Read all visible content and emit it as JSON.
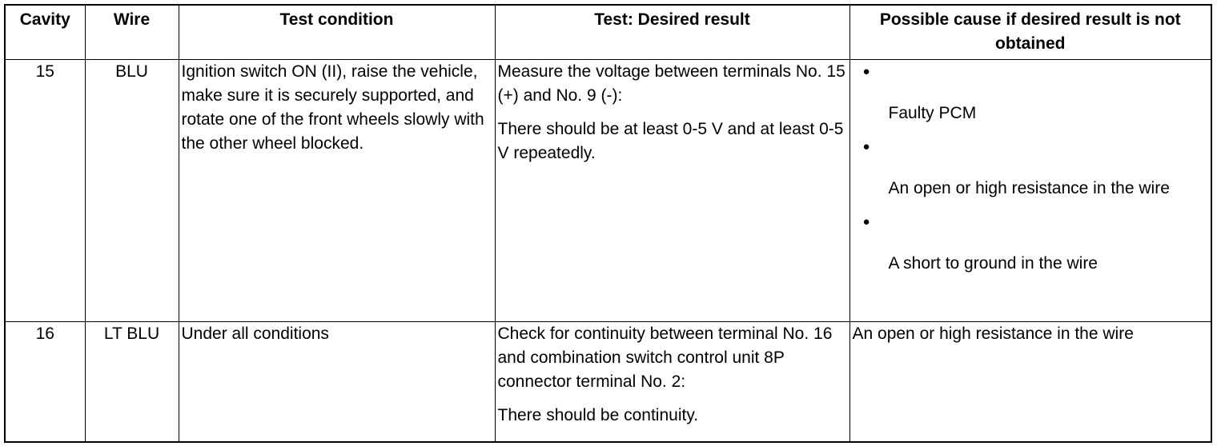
{
  "table": {
    "headers": [
      "Cavity",
      "Wire",
      "Test condition",
      "Test: Desired result",
      "Possible cause if desired result is not obtained"
    ],
    "rows": [
      {
        "cavity": "15",
        "wire": "BLU",
        "condition": "Ignition switch ON (II), raise the vehicle, make sure it is securely supported, and rotate one of the front wheels slowly with the other wheel blocked.",
        "result": [
          "Measure the voltage between terminals No. 15 (+) and No. 9 (-):",
          "There should be at least 0-5 V and at least 0-5 V repeatedly."
        ],
        "causes": [
          "Faulty PCM",
          "An open or high resistance in the wire",
          "A short to ground in the wire"
        ]
      },
      {
        "cavity": "16",
        "wire": "LT BLU",
        "condition": "Under all conditions",
        "result": [
          "Check for continuity between terminal No. 16 and combination switch control unit 8P connector terminal No. 2:",
          "There should be continuity."
        ],
        "cause": "An open or high resistance in the wire"
      }
    ]
  }
}
